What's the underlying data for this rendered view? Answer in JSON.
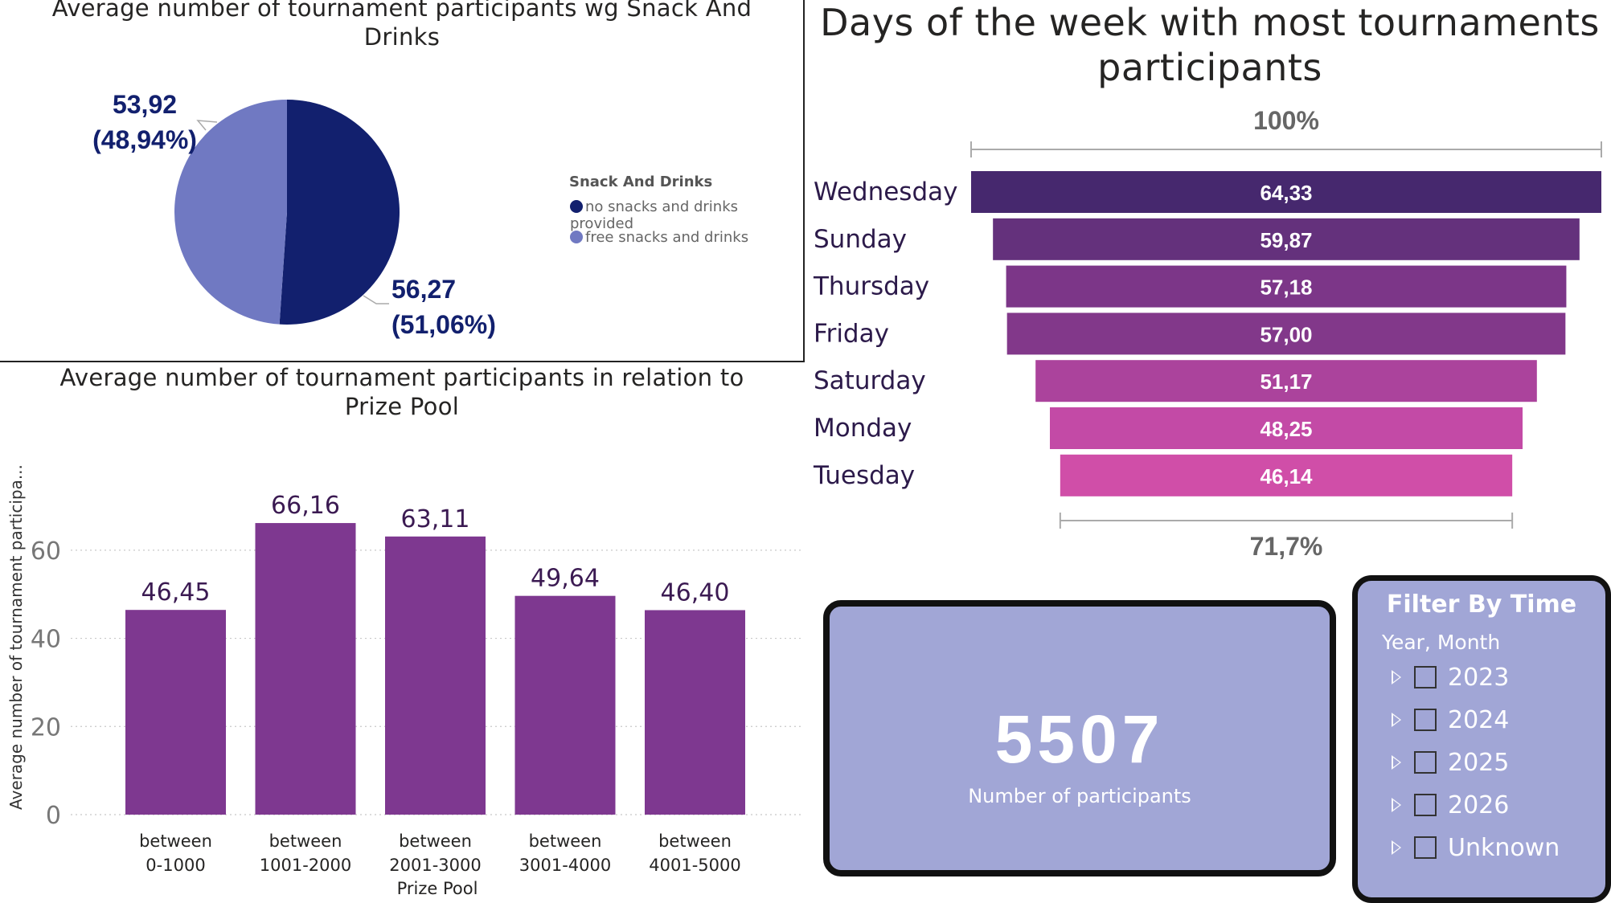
{
  "pie": {
    "title": "Average number of tournament participants wg Snack And Drinks",
    "legend_title": "Snack And Drinks",
    "slices": [
      {
        "name": "no snacks and drinks provided",
        "value": 56.27,
        "label_value": "56,27",
        "label_pct": "(51,06%)",
        "percent": 51.06,
        "color": "#12206e"
      },
      {
        "name": "free snacks and drinks",
        "value": 53.92,
        "label_value": "53,92",
        "label_pct": "(48,94%)",
        "percent": 48.94,
        "color": "#7079c2"
      }
    ]
  },
  "chart_data": [
    {
      "type": "pie",
      "title": "Average number of tournament participants wg Snack And Drinks",
      "legend_title": "Snack And Drinks",
      "legend_placement": "right",
      "categories": [
        "no snacks and drinks provided",
        "free snacks and drinks"
      ],
      "values": [
        56.27,
        53.92
      ],
      "percentages": [
        51.06,
        48.94
      ]
    },
    {
      "type": "bar",
      "title": "Average number of tournament participants in relation to Prize Pool",
      "xlabel": "Prize Pool",
      "ylabel": "Average number of tournament participa...",
      "categories": [
        "between 0-1000",
        "between 1001-2000",
        "between 2001-3000",
        "between 3001-4000",
        "between 4001-5000"
      ],
      "values": [
        46.45,
        66.16,
        63.11,
        49.64,
        46.4
      ],
      "ylim": [
        0,
        70
      ],
      "yticks": [
        0,
        20,
        40,
        60
      ],
      "grid": true
    },
    {
      "type": "bar",
      "subtype": "funnel",
      "title": "Days of the week with most tournaments participants",
      "categories": [
        "Wednesday",
        "Sunday",
        "Thursday",
        "Friday",
        "Saturday",
        "Monday",
        "Tuesday"
      ],
      "values": [
        64.33,
        59.87,
        57.18,
        57.0,
        51.17,
        48.25,
        46.14
      ],
      "top_pct_label": "100%",
      "bottom_pct_label": "71,7%"
    }
  ],
  "bars": {
    "title": "Average number of tournament participants in relation to Prize Pool",
    "ylabel": "Average number of tournament participa...",
    "xlabel": "Prize Pool",
    "ymax": 70,
    "ticks": [
      {
        "v": 0,
        "label": "0"
      },
      {
        "v": 20,
        "label": "20"
      },
      {
        "v": 40,
        "label": "40"
      },
      {
        "v": 60,
        "label": "60"
      }
    ],
    "items": [
      {
        "line1": "between",
        "line2": "0-1000",
        "value": 46.45,
        "label": "46,45"
      },
      {
        "line1": "between",
        "line2": "1001-2000",
        "value": 66.16,
        "label": "66,16"
      },
      {
        "line1": "between",
        "line2": "2001-3000",
        "value": 63.11,
        "label": "63,11"
      },
      {
        "line1": "between",
        "line2": "3001-4000",
        "value": 49.64,
        "label": "49,64"
      },
      {
        "line1": "between",
        "line2": "4001-5000",
        "value": 46.4,
        "label": "46,40"
      }
    ],
    "bar_color": "#7e3890",
    "label_color": "#3b1a52"
  },
  "funnel": {
    "title": "Days of the week with most tournaments participants",
    "top_pct": "100%",
    "bottom_pct": "71,7%",
    "items": [
      {
        "day": "Wednesday",
        "value": 64.33,
        "label": "64,33",
        "color": "#46286e"
      },
      {
        "day": "Sunday",
        "value": 59.87,
        "label": "59,87",
        "color": "#64317c"
      },
      {
        "day": "Thursday",
        "value": 57.18,
        "label": "57,18",
        "color": "#7c3688"
      },
      {
        "day": "Friday",
        "value": 57.0,
        "label": "57,00",
        "color": "#82388a"
      },
      {
        "day": "Saturday",
        "value": 51.17,
        "label": "51,17",
        "color": "#ab439c"
      },
      {
        "day": "Monday",
        "value": 48.25,
        "label": "48,25",
        "color": "#c34aa6"
      },
      {
        "day": "Tuesday",
        "value": 46.14,
        "label": "46,14",
        "color": "#d04ea8"
      }
    ],
    "day_color": "#2c1a4a"
  },
  "card": {
    "value": "5507",
    "label": "Number of participants"
  },
  "slicer": {
    "title": "Filter By Time",
    "subtitle": "Year, Month",
    "items": [
      "2023",
      "2024",
      "2025",
      "2026",
      "Unknown"
    ]
  }
}
